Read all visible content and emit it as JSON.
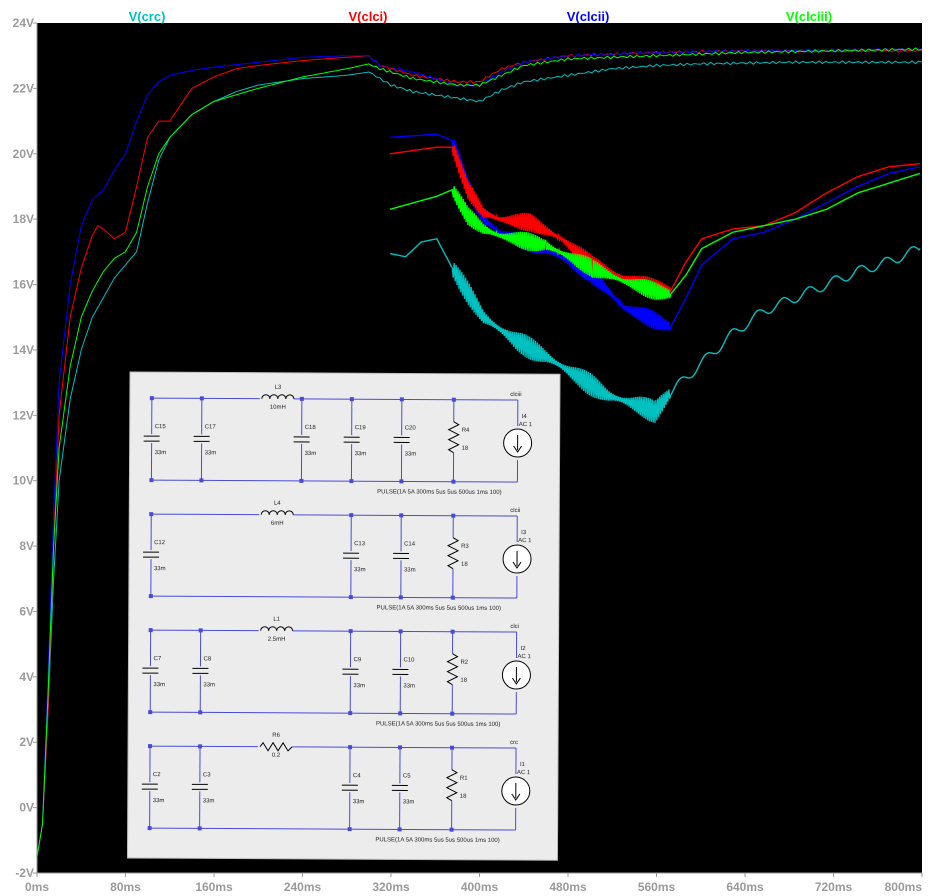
{
  "chart_data": {
    "type": "line",
    "xlabel": "",
    "ylabel": "",
    "xlim": [
      0,
      800
    ],
    "ylim": [
      -2,
      24
    ],
    "x_ticks": [
      "0ms",
      "80ms",
      "160ms",
      "240ms",
      "320ms",
      "400ms",
      "480ms",
      "560ms",
      "640ms",
      "720ms",
      "800ms"
    ],
    "y_ticks": [
      "-2V",
      "0V",
      "2V",
      "4V",
      "6V",
      "8V",
      "10V",
      "12V",
      "14V",
      "16V",
      "18V",
      "20V",
      "22V",
      "24V"
    ],
    "grid": false,
    "background": "#000000",
    "legend_placement": "top",
    "series": [
      {
        "name": "V(crc)",
        "color": "#00c0c0",
        "points": [
          [
            0,
            -1.5
          ],
          [
            5,
            -0.5
          ],
          [
            10,
            3
          ],
          [
            15,
            7
          ],
          [
            20,
            10
          ],
          [
            30,
            12.5
          ],
          [
            40,
            14
          ],
          [
            50,
            15
          ],
          [
            60,
            15.6
          ],
          [
            70,
            16.2
          ],
          [
            80,
            16.6
          ],
          [
            90,
            17
          ],
          [
            100,
            18.5
          ],
          [
            110,
            19.8
          ],
          [
            120,
            20.5
          ],
          [
            140,
            21.2
          ],
          [
            160,
            21.6
          ],
          [
            180,
            21.9
          ],
          [
            200,
            22.1
          ],
          [
            240,
            22.3
          ],
          [
            280,
            22.4
          ],
          [
            300,
            22.5
          ],
          [
            310,
            22.3
          ],
          [
            320,
            22.1
          ],
          [
            340,
            21.9
          ],
          [
            360,
            21.8
          ],
          [
            380,
            21.7
          ],
          [
            400,
            21.6
          ],
          [
            420,
            21.95
          ],
          [
            440,
            22.2
          ],
          [
            480,
            22.4
          ],
          [
            520,
            22.6
          ],
          [
            560,
            22.7
          ],
          [
            600,
            22.75
          ],
          [
            680,
            22.8
          ],
          [
            800,
            22.8
          ]
        ]
      },
      {
        "name": "V(clci)",
        "color": "#ff0000",
        "points": [
          [
            0,
            -1.5
          ],
          [
            5,
            -0.5
          ],
          [
            10,
            3
          ],
          [
            15,
            8
          ],
          [
            20,
            12
          ],
          [
            30,
            15
          ],
          [
            40,
            16.5
          ],
          [
            50,
            17.5
          ],
          [
            55,
            17.8
          ],
          [
            60,
            17.7
          ],
          [
            70,
            17.4
          ],
          [
            80,
            17.6
          ],
          [
            90,
            19
          ],
          [
            100,
            20.5
          ],
          [
            110,
            21
          ],
          [
            120,
            21
          ],
          [
            130,
            21.5
          ],
          [
            140,
            22
          ],
          [
            160,
            22.35
          ],
          [
            180,
            22.6
          ],
          [
            200,
            22.7
          ],
          [
            240,
            22.85
          ],
          [
            280,
            22.95
          ],
          [
            300,
            23
          ],
          [
            310,
            22.7
          ],
          [
            340,
            22.4
          ],
          [
            380,
            22.2
          ],
          [
            400,
            22.2
          ],
          [
            420,
            22.6
          ],
          [
            440,
            22.8
          ],
          [
            480,
            23
          ],
          [
            560,
            23.1
          ],
          [
            640,
            23.15
          ],
          [
            800,
            23.15
          ]
        ]
      },
      {
        "name": "V(clcii)",
        "color": "#0000ff",
        "points": [
          [
            0,
            -1.5
          ],
          [
            5,
            -0.5
          ],
          [
            10,
            4
          ],
          [
            15,
            9
          ],
          [
            20,
            13
          ],
          [
            30,
            16
          ],
          [
            40,
            17.8
          ],
          [
            50,
            18.6
          ],
          [
            60,
            18.9
          ],
          [
            70,
            19.5
          ],
          [
            80,
            20
          ],
          [
            90,
            21
          ],
          [
            100,
            21.8
          ],
          [
            110,
            22.2
          ],
          [
            120,
            22.4
          ],
          [
            140,
            22.55
          ],
          [
            160,
            22.65
          ],
          [
            200,
            22.8
          ],
          [
            240,
            22.95
          ],
          [
            280,
            23
          ],
          [
            300,
            23
          ],
          [
            310,
            22.7
          ],
          [
            340,
            22.5
          ],
          [
            380,
            22.1
          ],
          [
            400,
            22.1
          ],
          [
            420,
            22.5
          ],
          [
            440,
            22.8
          ],
          [
            480,
            23
          ],
          [
            560,
            23.1
          ],
          [
            640,
            23.15
          ],
          [
            800,
            23.2
          ]
        ]
      },
      {
        "name": "V(clciii)",
        "color": "#00ff00",
        "points": [
          [
            0,
            -1.5
          ],
          [
            5,
            -0.5
          ],
          [
            10,
            3.5
          ],
          [
            15,
            8
          ],
          [
            20,
            11
          ],
          [
            30,
            13.5
          ],
          [
            40,
            15
          ],
          [
            50,
            15.8
          ],
          [
            60,
            16.4
          ],
          [
            70,
            16.8
          ],
          [
            80,
            17
          ],
          [
            90,
            17.6
          ],
          [
            100,
            19
          ],
          [
            110,
            20
          ],
          [
            120,
            20.5
          ],
          [
            140,
            21.2
          ],
          [
            160,
            21.6
          ],
          [
            200,
            22
          ],
          [
            240,
            22.35
          ],
          [
            280,
            22.6
          ],
          [
            300,
            22.75
          ],
          [
            310,
            22.6
          ],
          [
            340,
            22.3
          ],
          [
            380,
            22.1
          ],
          [
            400,
            22.1
          ],
          [
            420,
            22.4
          ],
          [
            440,
            22.7
          ],
          [
            480,
            22.9
          ],
          [
            560,
            23
          ],
          [
            640,
            23.1
          ],
          [
            800,
            23.2
          ]
        ]
      },
      {
        "name": "V(clcii) zoom",
        "color": "#0000ff",
        "points": [
          [
            0,
            20.5
          ],
          [
            60,
            20.6
          ],
          [
            80,
            20.4
          ],
          [
            100,
            19
          ],
          [
            120,
            18
          ],
          [
            140,
            17.6
          ],
          [
            200,
            17.1
          ],
          [
            260,
            16.3
          ],
          [
            300,
            15.3
          ],
          [
            340,
            14.9
          ],
          [
            360,
            14.7
          ],
          [
            380,
            15.6
          ],
          [
            400,
            16.6
          ],
          [
            440,
            17.4
          ],
          [
            480,
            17.6
          ],
          [
            520,
            18
          ],
          [
            560,
            18.5
          ],
          [
            600,
            19
          ],
          [
            640,
            19.4
          ],
          [
            680,
            19.6
          ]
        ]
      },
      {
        "name": "V(clci) zoom",
        "color": "#ff0000",
        "points": [
          [
            0,
            20
          ],
          [
            60,
            20.2
          ],
          [
            80,
            20.2
          ],
          [
            100,
            18.9
          ],
          [
            120,
            18.2
          ],
          [
            140,
            18
          ],
          [
            180,
            17.9
          ],
          [
            220,
            17.4
          ],
          [
            260,
            16.6
          ],
          [
            300,
            16.2
          ],
          [
            340,
            15.9
          ],
          [
            360,
            15.8
          ],
          [
            380,
            16.7
          ],
          [
            400,
            17.4
          ],
          [
            440,
            17.7
          ],
          [
            480,
            17.8
          ],
          [
            520,
            18.2
          ],
          [
            560,
            18.8
          ],
          [
            600,
            19.3
          ],
          [
            640,
            19.6
          ],
          [
            680,
            19.7
          ]
        ]
      },
      {
        "name": "V(clciii) zoom",
        "color": "#00ff00",
        "points": [
          [
            0,
            18.3
          ],
          [
            60,
            18.7
          ],
          [
            80,
            18.9
          ],
          [
            100,
            18.1
          ],
          [
            120,
            17.7
          ],
          [
            140,
            17.5
          ],
          [
            200,
            17.2
          ],
          [
            260,
            16.5
          ],
          [
            300,
            16.1
          ],
          [
            340,
            15.8
          ],
          [
            360,
            15.7
          ],
          [
            380,
            16.3
          ],
          [
            400,
            17.1
          ],
          [
            440,
            17.6
          ],
          [
            480,
            17.8
          ],
          [
            520,
            18
          ],
          [
            560,
            18.3
          ],
          [
            600,
            18.8
          ],
          [
            640,
            19.1
          ],
          [
            680,
            19.4
          ]
        ]
      },
      {
        "name": "V(crc) zoom",
        "color": "#00c0c0",
        "points": [
          [
            0,
            16.95
          ],
          [
            20,
            16.85
          ],
          [
            40,
            17.3
          ],
          [
            60,
            17.4
          ],
          [
            80,
            16.5
          ],
          [
            120,
            15
          ],
          [
            160,
            14.3
          ],
          [
            200,
            13.8
          ],
          [
            240,
            13.2
          ],
          [
            280,
            12.6
          ],
          [
            320,
            12.3
          ],
          [
            340,
            12.1
          ],
          [
            360,
            12.7
          ],
          [
            400,
            13.6
          ],
          [
            440,
            14.5
          ],
          [
            480,
            15.2
          ],
          [
            520,
            15.6
          ],
          [
            560,
            16
          ],
          [
            600,
            16.4
          ],
          [
            640,
            16.7
          ],
          [
            680,
            17.1
          ]
        ]
      }
    ]
  },
  "schematic": {
    "rows": [
      {
        "node": "clciii",
        "inductor": "L3",
        "inductor_value": "10mH",
        "caps": [
          [
            "C15",
            "33m"
          ],
          [
            "C17",
            "33m"
          ],
          [
            "C18",
            "33m"
          ],
          [
            "C19",
            "33m"
          ],
          [
            "C20",
            "33m"
          ]
        ],
        "resistor": "R4",
        "resistor_value": "18",
        "source": "I4",
        "source_value": "AC 1",
        "pulse": "PULSE(1A 5A 300ms 5us 5us 500us 1ms 100)"
      },
      {
        "node": "clcii",
        "inductor": "L4",
        "inductor_value": "6mH",
        "caps": [
          [
            "C12",
            "33m"
          ],
          [
            "C13",
            "33m"
          ],
          [
            "C14",
            "33m"
          ]
        ],
        "resistor": "R3",
        "resistor_value": "18",
        "source": "I3",
        "source_value": "AC 1",
        "pulse": "PULSE(1A 5A 300ms 5us 5us 500us 1ms 100)"
      },
      {
        "node": "clci",
        "inductor": "L1",
        "inductor_value": "2.5mH",
        "caps": [
          [
            "C7",
            "33m"
          ],
          [
            "C8",
            "33m"
          ],
          [
            "C9",
            "33m"
          ],
          [
            "C10",
            "33m"
          ]
        ],
        "resistor": "R2",
        "resistor_value": "18",
        "source": "I2",
        "source_value": "AC 1",
        "pulse": "PULSE(1A 5A 300ms 5us 5us 500us 1ms 100)"
      },
      {
        "node": "crc",
        "inductor": "R6",
        "inductor_value": "0.2",
        "caps": [
          [
            "C2",
            "33m"
          ],
          [
            "C3",
            "33m"
          ],
          [
            "C4",
            "33m"
          ],
          [
            "C5",
            "33m"
          ]
        ],
        "resistor": "R1",
        "resistor_value": "18",
        "source": "I1",
        "source_value": "AC 1",
        "pulse": "PULSE(1A 5A 300ms 5us 5us 500us 1ms 100)"
      }
    ]
  }
}
